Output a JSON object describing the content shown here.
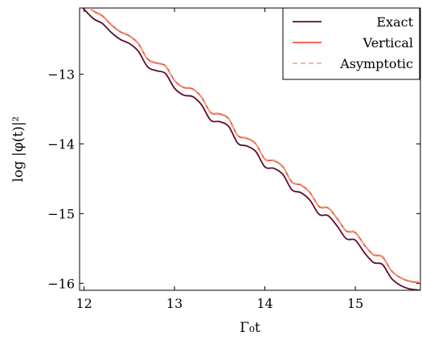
{
  "chart_data": {
    "type": "line",
    "title": "",
    "xlabel": "Γ₀t",
    "ylabel": "log |φ(t)|²",
    "xlim": [
      11.95,
      15.72
    ],
    "ylim": [
      -16.1,
      -12.05
    ],
    "x_ticks": [
      12,
      13,
      14,
      15
    ],
    "y_ticks": [
      -13,
      -14,
      -15,
      -16
    ],
    "x_tick_labels": [
      "12",
      "13",
      "14",
      "15"
    ],
    "y_tick_labels": [
      "−13",
      "−14",
      "−15",
      "−16"
    ],
    "grid": false,
    "legend_position": "top-right",
    "series": [
      {
        "name": "Exact",
        "color": "#5c0a2e",
        "style": "solid",
        "x": [
          11.95,
          12.1,
          12.2,
          12.3,
          12.4,
          12.5,
          12.6,
          12.7,
          12.8,
          12.9,
          13.0,
          13.1,
          13.2,
          13.3,
          13.4,
          13.5,
          13.6,
          13.7,
          13.8,
          13.9,
          14.0,
          14.1,
          14.2,
          14.3,
          14.4,
          14.5,
          14.6,
          14.7,
          14.8,
          14.9,
          15.0,
          15.1,
          15.2,
          15.3,
          15.4,
          15.5,
          15.6,
          15.72
        ],
        "y": [
          -12.0,
          -12.2,
          -12.27,
          -12.4,
          -12.5,
          -12.56,
          -12.67,
          -12.89,
          -12.95,
          -12.99,
          -13.2,
          -13.3,
          -13.32,
          -13.44,
          -13.66,
          -13.68,
          -13.75,
          -13.99,
          -14.03,
          -14.11,
          -14.33,
          -14.35,
          -14.44,
          -14.66,
          -14.7,
          -14.81,
          -15.01,
          -15.03,
          -15.18,
          -15.36,
          -15.38,
          -15.56,
          -15.7,
          -15.73,
          -15.93,
          -16.03,
          -16.08,
          -16.1
        ]
      },
      {
        "name": "Vertical",
        "color": "#e8553f",
        "style": "solid",
        "x": [
          11.95,
          12.1,
          12.2,
          12.3,
          12.4,
          12.5,
          12.6,
          12.7,
          12.8,
          12.9,
          13.0,
          13.1,
          13.2,
          13.3,
          13.4,
          13.5,
          13.6,
          13.7,
          13.8,
          13.9,
          14.0,
          14.1,
          14.2,
          14.3,
          14.4,
          14.5,
          14.6,
          14.7,
          14.8,
          14.9,
          15.0,
          15.1,
          15.2,
          15.3,
          15.4,
          15.5,
          15.6,
          15.72
        ],
        "y": [
          -11.9,
          -12.09,
          -12.16,
          -12.29,
          -12.39,
          -12.45,
          -12.56,
          -12.78,
          -12.84,
          -12.88,
          -13.09,
          -13.19,
          -13.21,
          -13.33,
          -13.55,
          -13.57,
          -13.64,
          -13.88,
          -13.92,
          -14.0,
          -14.22,
          -14.24,
          -14.33,
          -14.55,
          -14.59,
          -14.7,
          -14.9,
          -14.92,
          -15.07,
          -15.25,
          -15.27,
          -15.45,
          -15.59,
          -15.62,
          -15.82,
          -15.92,
          -15.97,
          -15.99
        ]
      },
      {
        "name": "Asymptotic",
        "color": "#f5b38a",
        "style": "dashed",
        "x": [
          11.95,
          12.1,
          12.2,
          12.3,
          12.4,
          12.5,
          12.6,
          12.7,
          12.8,
          12.9,
          13.0,
          13.1,
          13.2,
          13.3,
          13.4,
          13.5,
          13.6,
          13.7,
          13.8,
          13.9,
          14.0,
          14.1,
          14.2,
          14.3,
          14.4,
          14.5,
          14.6,
          14.7,
          14.8,
          14.9,
          15.0,
          15.1,
          15.2,
          15.3,
          15.4,
          15.5,
          15.6,
          15.72
        ],
        "y": [
          -11.89,
          -12.08,
          -12.15,
          -12.28,
          -12.38,
          -12.44,
          -12.55,
          -12.77,
          -12.83,
          -12.87,
          -13.08,
          -13.18,
          -13.2,
          -13.32,
          -13.54,
          -13.56,
          -13.63,
          -13.87,
          -13.91,
          -13.99,
          -14.21,
          -14.23,
          -14.32,
          -14.54,
          -14.58,
          -14.69,
          -14.89,
          -14.91,
          -15.06,
          -15.24,
          -15.26,
          -15.44,
          -15.58,
          -15.61,
          -15.81,
          -15.91,
          -15.96,
          -15.98
        ]
      }
    ]
  }
}
